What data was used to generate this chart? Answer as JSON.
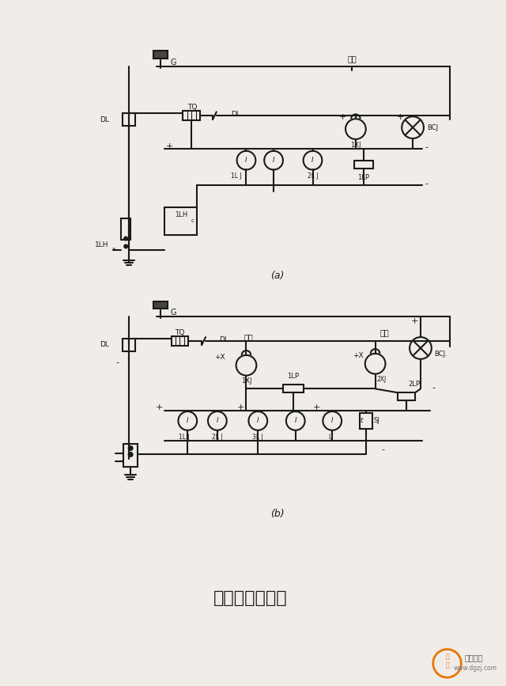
{
  "title": "电流速断原理图",
  "subtitle_a": "(a)",
  "subtitle_b": "(b)",
  "bg_color": "#f0ede8",
  "line_color": "#1a1a1a",
  "text_color": "#1a1a1a",
  "watermark": "www.dgzj.com",
  "watermark2": "电工之家"
}
